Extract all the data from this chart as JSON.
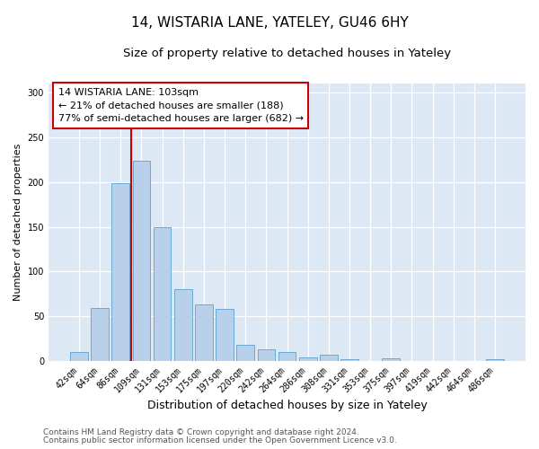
{
  "title": "14, WISTARIA LANE, YATELEY, GU46 6HY",
  "subtitle": "Size of property relative to detached houses in Yateley",
  "xlabel": "Distribution of detached houses by size in Yateley",
  "ylabel": "Number of detached properties",
  "categories": [
    "42sqm",
    "64sqm",
    "86sqm",
    "109sqm",
    "131sqm",
    "153sqm",
    "175sqm",
    "197sqm",
    "220sqm",
    "242sqm",
    "264sqm",
    "286sqm",
    "308sqm",
    "331sqm",
    "353sqm",
    "375sqm",
    "397sqm",
    "419sqm",
    "442sqm",
    "464sqm",
    "486sqm"
  ],
  "values": [
    10,
    59,
    199,
    224,
    150,
    80,
    63,
    58,
    18,
    13,
    10,
    4,
    7,
    2,
    0,
    3,
    0,
    0,
    0,
    0,
    2
  ],
  "bar_color": "#b8d0ea",
  "bar_edge_color": "#6aaad4",
  "vline_color": "#cc0000",
  "vline_x": 2.5,
  "annotation_text": "14 WISTARIA LANE: 103sqm\n← 21% of detached houses are smaller (188)\n77% of semi-detached houses are larger (682) →",
  "annotation_box_facecolor": "#ffffff",
  "annotation_box_edgecolor": "#cc0000",
  "ylim": [
    0,
    310
  ],
  "yticks": [
    0,
    50,
    100,
    150,
    200,
    250,
    300
  ],
  "footer_line1": "Contains HM Land Registry data © Crown copyright and database right 2024.",
  "footer_line2": "Contains public sector information licensed under the Open Government Licence v3.0.",
  "plot_bg_color": "#dde8f5",
  "fig_bg_color": "#ffffff",
  "grid_color": "#ffffff",
  "title_fontsize": 11,
  "subtitle_fontsize": 9.5,
  "xlabel_fontsize": 9,
  "ylabel_fontsize": 8,
  "tick_fontsize": 7,
  "annotation_fontsize": 8,
  "footer_fontsize": 6.5
}
